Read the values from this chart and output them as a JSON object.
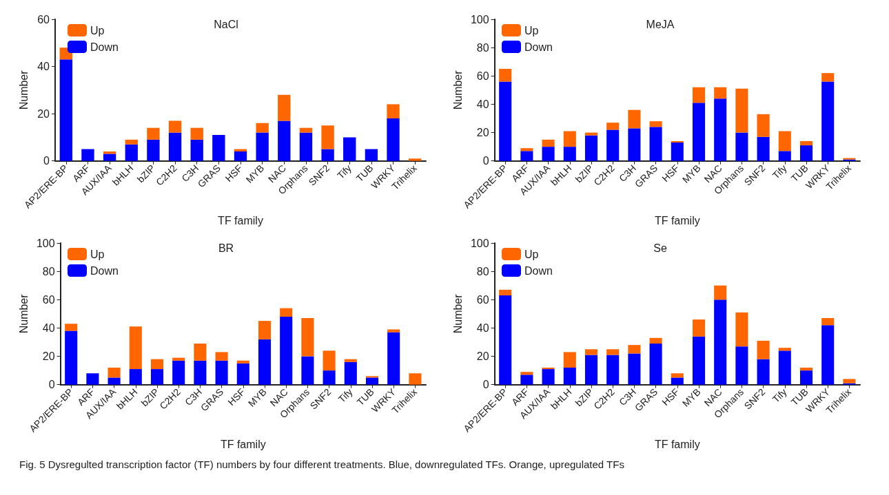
{
  "chart_data": [
    {
      "type": "bar",
      "title": "NaCl",
      "xlabel": "TF family",
      "ylabel": "Number",
      "stacked": true,
      "legend": "top left",
      "grid": false,
      "categories": [
        "AP2/ERE-BP",
        "ARF",
        "AUX/IAA",
        "bHLH",
        "bZIP",
        "C2H2",
        "C3H",
        "GRAS",
        "HSF",
        "MYB",
        "NAC",
        "Orphans",
        "SNF2",
        "Tify",
        "TUB",
        "WRKY",
        "Trihelix"
      ],
      "ylim": [
        0,
        60
      ],
      "yticks": [
        0,
        20,
        40,
        60
      ],
      "series": [
        {
          "name": "Down",
          "color": "#0000ff",
          "values": [
            43,
            5,
            3,
            7,
            9,
            12,
            9,
            11,
            4,
            12,
            17,
            12,
            5,
            10,
            5,
            18,
            0
          ]
        },
        {
          "name": "Up",
          "color": "#ff6600",
          "values": [
            5,
            0,
            1,
            2,
            5,
            5,
            5,
            0,
            1,
            4,
            11,
            2,
            10,
            0,
            0,
            6,
            1
          ]
        }
      ]
    },
    {
      "type": "bar",
      "title": "MeJA",
      "xlabel": "TF family",
      "ylabel": "Number",
      "stacked": true,
      "legend": "top left",
      "grid": false,
      "categories": [
        "AP2/ERE-BP",
        "ARF",
        "AUX/IAA",
        "bHLH",
        "bZIP",
        "C2H2",
        "C3H",
        "GRAS",
        "HSF",
        "MYB",
        "NAC",
        "Orphans",
        "SNF2",
        "Tify",
        "TUB",
        "WRKY",
        "Trihelix"
      ],
      "ylim": [
        0,
        100
      ],
      "yticks": [
        0,
        20,
        40,
        60,
        80,
        100
      ],
      "series": [
        {
          "name": "Down",
          "color": "#0000ff",
          "values": [
            56,
            7,
            10,
            10,
            18,
            22,
            23,
            24,
            13,
            41,
            44,
            20,
            17,
            7,
            11,
            56,
            1
          ]
        },
        {
          "name": "Up",
          "color": "#ff6600",
          "values": [
            9,
            2,
            5,
            11,
            2,
            5,
            13,
            4,
            1,
            11,
            8,
            31,
            16,
            14,
            3,
            6,
            1
          ]
        }
      ]
    },
    {
      "type": "bar",
      "title": "BR",
      "xlabel": "TF family",
      "ylabel": "Number",
      "stacked": true,
      "legend": "top left",
      "grid": false,
      "categories": [
        "AP2/ERE-BP",
        "ARF",
        "AUX/IAA",
        "bHLH",
        "bZIP",
        "C2H2",
        "C3H",
        "GRAS",
        "HSF",
        "MYB",
        "NAC",
        "Orphans",
        "SNF2",
        "Tify",
        "TUB",
        "WRKY",
        "Trihelix"
      ],
      "ylim": [
        0,
        100
      ],
      "yticks": [
        0,
        20,
        40,
        60,
        80,
        100
      ],
      "series": [
        {
          "name": "Down",
          "color": "#0000ff",
          "values": [
            38,
            8,
            5,
            11,
            11,
            17,
            17,
            17,
            15,
            32,
            48,
            20,
            10,
            16,
            5,
            37,
            0
          ]
        },
        {
          "name": "Up",
          "color": "#ff6600",
          "values": [
            5,
            0,
            7,
            30,
            7,
            2,
            12,
            6,
            2,
            13,
            6,
            27,
            14,
            2,
            1,
            2,
            8
          ]
        }
      ]
    },
    {
      "type": "bar",
      "title": "Se",
      "xlabel": "TF family",
      "ylabel": "Number",
      "stacked": true,
      "legend": "top left",
      "grid": false,
      "categories": [
        "AP2/ERE-BP",
        "ARF",
        "AUX/IAA",
        "bHLH",
        "bZIP",
        "C2H2",
        "C3H",
        "GRAS",
        "HSF",
        "MYB",
        "NAC",
        "Orphans",
        "SNF2",
        "Tify",
        "TUB",
        "WRKY",
        "Trihelix"
      ],
      "ylim": [
        0,
        100
      ],
      "yticks": [
        0,
        20,
        40,
        60,
        80,
        100
      ],
      "series": [
        {
          "name": "Down",
          "color": "#0000ff",
          "values": [
            63,
            7,
            11,
            12,
            21,
            21,
            22,
            29,
            5,
            34,
            60,
            27,
            18,
            24,
            10,
            42,
            1
          ]
        },
        {
          "name": "Up",
          "color": "#ff6600",
          "values": [
            4,
            2,
            1,
            11,
            4,
            4,
            6,
            4,
            3,
            12,
            10,
            24,
            13,
            2,
            2,
            5,
            3
          ]
        }
      ],
      "annotations": [
        "Fig. 5 Dysregulted transcription factor (TF) numbers by four different treatments. Blue, downregulated TFs. Orange, upregulated TFs"
      ]
    }
  ]
}
